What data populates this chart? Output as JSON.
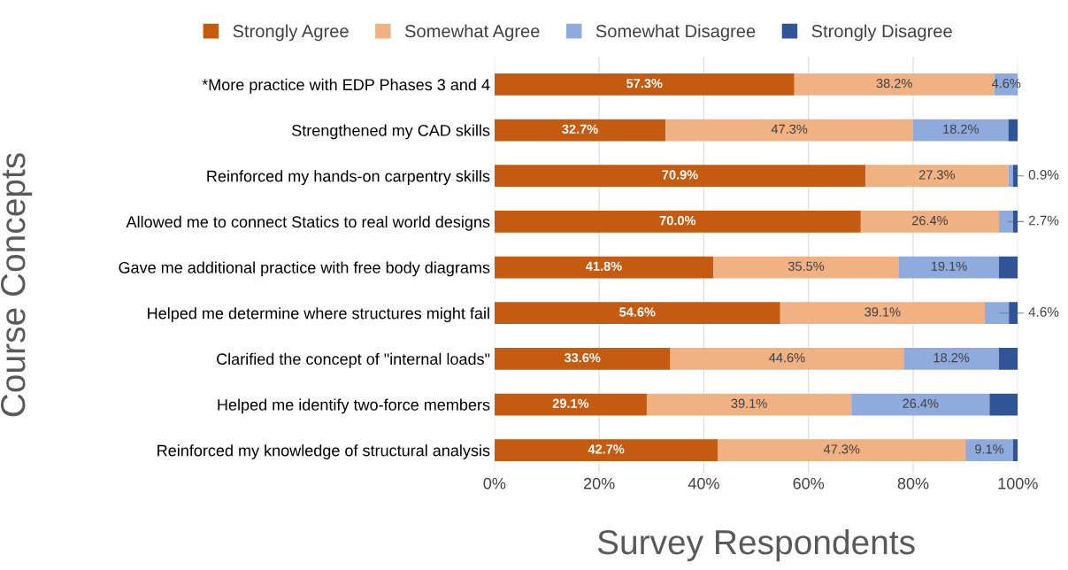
{
  "chart_data": {
    "type": "bar",
    "orientation": "horizontal",
    "stacked": true,
    "xlabel": "Survey Respondents",
    "ylabel": "Course Concepts",
    "categories": [
      "*More practice with EDP Phases 3 and 4",
      "Strengthened my CAD skills",
      "Reinforced my hands-on carpentry skills",
      "Allowed me to connect Statics to real world designs",
      "Gave me additional practice with free body diagrams",
      "Helped me determine where structures might fail",
      "Clarified the concept of \"internal loads\"",
      "Helped me identify two-force members",
      "Reinforced my knowledge of structural analysis"
    ],
    "series": [
      {
        "name": "Strongly Agree",
        "color": "#c55a11",
        "values": [
          57.3,
          32.7,
          70.9,
          70.0,
          41.8,
          54.6,
          33.6,
          29.1,
          42.7
        ],
        "value_labels": [
          "57.3%",
          "32.7%",
          "70.9%",
          "70.0%",
          "41.8%",
          "54.6%",
          "33.6%",
          "29.1%",
          "42.7%"
        ]
      },
      {
        "name": "Somewhat Agree",
        "color": "#f0b183",
        "values": [
          38.2,
          47.3,
          27.3,
          26.4,
          35.5,
          39.1,
          44.6,
          39.1,
          47.3
        ],
        "value_labels": [
          "38.2%",
          "47.3%",
          "27.3%",
          "26.4%",
          "35.5%",
          "39.1%",
          "44.6%",
          "39.1%",
          "47.3%"
        ]
      },
      {
        "name": "Somewhat Disagree",
        "color": "#8faadc",
        "values": [
          4.6,
          18.2,
          0.9,
          2.7,
          19.1,
          4.6,
          18.2,
          26.4,
          9.1
        ],
        "value_labels": [
          "4.6%",
          "18.2%",
          "0.9%",
          "2.7%",
          "19.1%",
          "4.6%",
          "18.2%",
          "26.4%",
          "9.1%"
        ]
      },
      {
        "name": "Strongly Disagree",
        "color": "#2f5597",
        "values": [
          0,
          1.8,
          0.9,
          0.9,
          3.6,
          1.7,
          3.6,
          5.4,
          0.9
        ],
        "value_labels": [
          null,
          null,
          null,
          null,
          null,
          null,
          null,
          null,
          null
        ]
      }
    ],
    "xlim": [
      0,
      100
    ],
    "xticks": [
      {
        "value": 0,
        "label": "0%"
      },
      {
        "value": 20,
        "label": "20%"
      },
      {
        "value": 40,
        "label": "40%"
      },
      {
        "value": 60,
        "label": "60%"
      },
      {
        "value": 80,
        "label": "80%"
      },
      {
        "value": 100,
        "label": "100%"
      }
    ],
    "grid": "x",
    "legend": "top"
  }
}
